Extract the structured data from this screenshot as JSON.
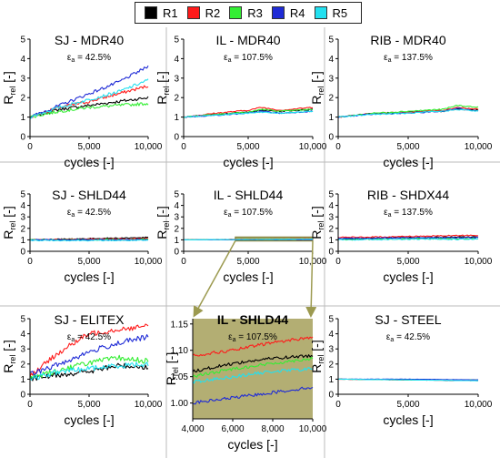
{
  "legend": [
    {
      "name": "R1",
      "color": "#000000"
    },
    {
      "name": "R2",
      "color": "#ff1a1a"
    },
    {
      "name": "R3",
      "color": "#33ee33"
    },
    {
      "name": "R4",
      "color": "#1f2bd6"
    },
    {
      "name": "R5",
      "color": "#22e0f0"
    }
  ],
  "chart_data": [
    {
      "type": "line",
      "title": "SJ - MDR40",
      "subtitle_sym": "ε",
      "subtitle_sub": "a",
      "subtitle_val": " = 42.5%",
      "xlabel": "cycles [-]",
      "ylabel_main": "R",
      "ylabel_sub": "rel",
      "ylabel_unit": " [-]",
      "xlim": [
        0,
        10000
      ],
      "ylim": [
        0,
        5
      ],
      "xticks": [
        0,
        5000,
        10000
      ],
      "xtick_labels": [
        "0",
        "5,000",
        "10,000"
      ],
      "yticks": [
        0,
        1,
        2,
        3,
        4,
        5
      ],
      "ytick_labels": [
        "0",
        "1",
        "2",
        "3",
        "4",
        "5"
      ],
      "noise": 0.08,
      "bg": "#ffffff",
      "x": [
        0,
        2500,
        5000,
        7500,
        10000
      ],
      "series": [
        {
          "name": "R1",
          "values": [
            1.0,
            1.4,
            1.6,
            1.8,
            2.0
          ]
        },
        {
          "name": "R2",
          "values": [
            1.0,
            1.5,
            1.8,
            2.2,
            2.6
          ]
        },
        {
          "name": "R3",
          "values": [
            1.0,
            1.3,
            1.5,
            1.6,
            1.7
          ]
        },
        {
          "name": "R4",
          "values": [
            1.0,
            1.6,
            2.2,
            2.8,
            3.6
          ]
        },
        {
          "name": "R5",
          "values": [
            1.0,
            1.5,
            1.9,
            2.3,
            2.9
          ]
        }
      ]
    },
    {
      "type": "line",
      "title": "IL - MDR40",
      "subtitle_sym": "ε",
      "subtitle_sub": "a",
      "subtitle_val": " = 107.5%",
      "xlabel": "cycles [-]",
      "ylabel_main": "R",
      "ylabel_sub": "rel",
      "ylabel_unit": " [-]",
      "xlim": [
        0,
        10000
      ],
      "ylim": [
        0,
        5
      ],
      "xticks": [
        0,
        5000,
        10000
      ],
      "xtick_labels": [
        "0",
        "5,000",
        "10,000"
      ],
      "yticks": [
        0,
        1,
        2,
        3,
        4,
        5
      ],
      "ytick_labels": [
        "0",
        "1",
        "2",
        "3",
        "4",
        "5"
      ],
      "noise": 0.03,
      "bg": "#ffffff",
      "x": [
        0,
        2500,
        5000,
        6000,
        7500,
        10000
      ],
      "series": [
        {
          "name": "R1",
          "values": [
            1.0,
            1.15,
            1.25,
            1.35,
            1.3,
            1.4
          ]
        },
        {
          "name": "R2",
          "values": [
            1.0,
            1.2,
            1.35,
            1.5,
            1.35,
            1.5
          ]
        },
        {
          "name": "R3",
          "values": [
            1.0,
            1.15,
            1.25,
            1.4,
            1.3,
            1.4
          ]
        },
        {
          "name": "R4",
          "values": [
            1.0,
            1.1,
            1.2,
            1.3,
            1.2,
            1.3
          ]
        },
        {
          "name": "R5",
          "values": [
            1.0,
            1.1,
            1.2,
            1.25,
            1.2,
            1.3
          ]
        }
      ]
    },
    {
      "type": "line",
      "title": "RIB - MDR40",
      "subtitle_sym": "ε",
      "subtitle_sub": "a",
      "subtitle_val": " = 137.5%",
      "xlabel": "cycles [-]",
      "ylabel_main": "R",
      "ylabel_sub": "rel",
      "ylabel_unit": " [-]",
      "xlim": [
        0,
        10000
      ],
      "ylim": [
        0,
        5
      ],
      "xticks": [
        0,
        5000,
        10000
      ],
      "xtick_labels": [
        "0",
        "5,000",
        "10,000"
      ],
      "yticks": [
        0,
        1,
        2,
        3,
        4,
        5
      ],
      "ytick_labels": [
        "0",
        "1",
        "2",
        "3",
        "4",
        "5"
      ],
      "noise": 0.03,
      "bg": "#ffffff",
      "x": [
        0,
        2500,
        5000,
        7500,
        8500,
        10000
      ],
      "series": [
        {
          "name": "R1",
          "values": [
            1.0,
            1.2,
            1.25,
            1.3,
            1.4,
            1.35
          ]
        },
        {
          "name": "R2",
          "values": [
            1.0,
            1.2,
            1.25,
            1.35,
            1.5,
            1.4
          ]
        },
        {
          "name": "R3",
          "values": [
            1.0,
            1.2,
            1.3,
            1.4,
            1.6,
            1.5
          ]
        },
        {
          "name": "R4",
          "values": [
            1.0,
            1.15,
            1.2,
            1.3,
            1.45,
            1.3
          ]
        },
        {
          "name": "R5",
          "values": [
            1.0,
            1.15,
            1.2,
            1.3,
            1.4,
            1.3
          ]
        }
      ]
    },
    {
      "type": "line",
      "title": "SJ - SHLD44",
      "subtitle_sym": "ε",
      "subtitle_sub": "a",
      "subtitle_val": " = 42.5%",
      "xlabel": "cycles [-]",
      "ylabel_main": "R",
      "ylabel_sub": "rel",
      "ylabel_unit": " [-]",
      "xlim": [
        0,
        10000
      ],
      "ylim": [
        0,
        5
      ],
      "xticks": [
        0,
        5000,
        10000
      ],
      "xtick_labels": [
        "0",
        "5,000",
        "10,000"
      ],
      "yticks": [
        0,
        1,
        2,
        3,
        4,
        5
      ],
      "ytick_labels": [
        "0",
        "1",
        "2",
        "3",
        "4",
        "5"
      ],
      "noise": 0.05,
      "bg": "#ffffff",
      "x": [
        0,
        5000,
        10000
      ],
      "series": [
        {
          "name": "R1",
          "values": [
            1.0,
            1.1,
            1.2
          ]
        },
        {
          "name": "R2",
          "values": [
            1.0,
            1.05,
            1.1
          ]
        },
        {
          "name": "R3",
          "values": [
            1.0,
            1.0,
            1.05
          ]
        },
        {
          "name": "R4",
          "values": [
            1.0,
            1.0,
            1.0
          ]
        },
        {
          "name": "R5",
          "values": [
            0.95,
            0.95,
            0.95
          ]
        }
      ]
    },
    {
      "type": "line",
      "title": "IL - SHLD44",
      "subtitle_sym": "ε",
      "subtitle_sub": "a",
      "subtitle_val": " = 107.5%",
      "xlabel": "cycles [-]",
      "ylabel_main": "R",
      "ylabel_sub": "rel",
      "ylabel_unit": " [-]",
      "xlim": [
        0,
        10000
      ],
      "ylim": [
        0,
        5
      ],
      "xticks": [
        0,
        5000,
        10000
      ],
      "xtick_labels": [
        "0",
        "5,000",
        "10,000"
      ],
      "yticks": [
        0,
        1,
        2,
        3,
        4,
        5
      ],
      "ytick_labels": [
        "0",
        "1",
        "2",
        "3",
        "4",
        "5"
      ],
      "noise": 0.01,
      "bg": "#ffffff",
      "highlight": [
        4000,
        10000,
        0.9,
        1.25
      ],
      "x": [
        0,
        5000,
        10000
      ],
      "series": [
        {
          "name": "R1",
          "values": [
            1.0,
            1.03,
            1.05
          ]
        },
        {
          "name": "R2",
          "values": [
            1.0,
            1.06,
            1.1
          ]
        },
        {
          "name": "R3",
          "values": [
            1.0,
            1.04,
            1.08
          ]
        },
        {
          "name": "R4",
          "values": [
            1.0,
            1.01,
            1.02
          ]
        },
        {
          "name": "R5",
          "values": [
            1.0,
            1.03,
            1.07
          ]
        }
      ]
    },
    {
      "type": "line",
      "title": "RIB - SHDX44",
      "subtitle_sym": "ε",
      "subtitle_sub": "a",
      "subtitle_val": " = 137.5%",
      "xlabel": "cycles [-]",
      "ylabel_main": "R",
      "ylabel_sub": "rel",
      "ylabel_unit": " [-]",
      "xlim": [
        0,
        10000
      ],
      "ylim": [
        0,
        5
      ],
      "xticks": [
        0,
        5000,
        10000
      ],
      "xtick_labels": [
        "0",
        "5,000",
        "10,000"
      ],
      "yticks": [
        0,
        1,
        2,
        3,
        4,
        5
      ],
      "ytick_labels": [
        "0",
        "1",
        "2",
        "3",
        "4",
        "5"
      ],
      "noise": 0.05,
      "bg": "#ffffff",
      "x": [
        0,
        5000,
        10000
      ],
      "series": [
        {
          "name": "R1",
          "values": [
            1.1,
            1.2,
            1.25
          ]
        },
        {
          "name": "R2",
          "values": [
            1.2,
            1.3,
            1.4
          ]
        },
        {
          "name": "R3",
          "values": [
            1.0,
            1.1,
            1.1
          ]
        },
        {
          "name": "R4",
          "values": [
            1.1,
            1.2,
            1.2
          ]
        },
        {
          "name": "R5",
          "values": [
            1.0,
            1.05,
            1.05
          ]
        }
      ]
    },
    {
      "type": "line",
      "title": "SJ - ELITEX",
      "subtitle_sym": "ε",
      "subtitle_sub": "a",
      "subtitle_val": " = 42.5%",
      "xlabel": "cycles [-]",
      "ylabel_main": "R",
      "ylabel_sub": "rel",
      "ylabel_unit": " [-]",
      "xlim": [
        0,
        10000
      ],
      "ylim": [
        0,
        5
      ],
      "xticks": [
        0,
        5000,
        10000
      ],
      "xtick_labels": [
        "0",
        "5,000",
        "10,000"
      ],
      "yticks": [
        0,
        1,
        2,
        3,
        4,
        5
      ],
      "ytick_labels": [
        "0",
        "1",
        "2",
        "3",
        "4",
        "5"
      ],
      "noise": 0.18,
      "bg": "#ffffff",
      "x": [
        0,
        2500,
        5000,
        7500,
        10000
      ],
      "series": [
        {
          "name": "R1",
          "values": [
            1.0,
            1.3,
            1.5,
            1.9,
            1.8
          ]
        },
        {
          "name": "R2",
          "values": [
            1.2,
            2.8,
            4.0,
            4.3,
            4.5
          ]
        },
        {
          "name": "R3",
          "values": [
            1.1,
            1.6,
            2.1,
            2.4,
            2.2
          ]
        },
        {
          "name": "R4",
          "values": [
            1.3,
            2.0,
            2.8,
            3.4,
            3.8
          ]
        },
        {
          "name": "R5",
          "values": [
            1.0,
            1.5,
            1.7,
            1.9,
            2.0
          ]
        }
      ]
    },
    {
      "type": "line",
      "title": "IL - SHLD44",
      "subtitle_sym": "ε",
      "subtitle_sub": "a",
      "subtitle_val": " = 107.5%",
      "xlabel": "cycles [-]",
      "ylabel_main": "R",
      "ylabel_sub": "rel",
      "ylabel_unit": " [-]",
      "xlim": [
        4000,
        10000
      ],
      "ylim": [
        0.97,
        1.16
      ],
      "xticks": [
        4000,
        6000,
        8000,
        10000
      ],
      "xtick_labels": [
        "4,000",
        "6,000",
        "8,000",
        "10,000"
      ],
      "yticks": [
        1.0,
        1.05,
        1.1,
        1.15
      ],
      "ytick_labels": [
        "1.00",
        "1.05",
        "1.10",
        "1.15"
      ],
      "noise": 0.003,
      "bg": "#b3ae73",
      "x": [
        4000,
        6000,
        8000,
        10000
      ],
      "series": [
        {
          "name": "R1",
          "values": [
            1.06,
            1.075,
            1.085,
            1.09
          ]
        },
        {
          "name": "R2",
          "values": [
            1.09,
            1.1,
            1.115,
            1.125
          ]
        },
        {
          "name": "R3",
          "values": [
            1.05,
            1.065,
            1.075,
            1.085
          ]
        },
        {
          "name": "R4",
          "values": [
            1.0,
            1.01,
            1.02,
            1.03
          ]
        },
        {
          "name": "R5",
          "values": [
            1.04,
            1.05,
            1.06,
            1.065
          ]
        }
      ]
    },
    {
      "type": "line",
      "title": "SJ - STEEL",
      "subtitle_sym": "ε",
      "subtitle_sub": "a",
      "subtitle_val": " = 42.5%",
      "xlabel": "cycles [-]",
      "ylabel_main": "R",
      "ylabel_sub": "rel",
      "ylabel_unit": " [-]",
      "xlim": [
        0,
        10000
      ],
      "ylim": [
        0,
        5
      ],
      "xticks": [
        0,
        5000,
        10000
      ],
      "xtick_labels": [
        "0",
        "5,000",
        "10,000"
      ],
      "yticks": [
        0,
        1,
        2,
        3,
        4,
        5
      ],
      "ytick_labels": [
        "0",
        "1",
        "2",
        "3",
        "4",
        "5"
      ],
      "noise": 0.01,
      "bg": "#ffffff",
      "x": [
        0,
        5000,
        10000
      ],
      "series": [
        {
          "name": "R1",
          "values": [
            1.0,
            0.95,
            0.9
          ]
        },
        {
          "name": "R2",
          "values": [
            1.0,
            0.95,
            0.95
          ]
        },
        {
          "name": "R3",
          "values": [
            1.0,
            0.95,
            0.95
          ]
        },
        {
          "name": "R4",
          "values": [
            1.0,
            1.0,
            0.95
          ]
        },
        {
          "name": "R5",
          "values": [
            1.0,
            0.95,
            0.9
          ]
        }
      ]
    }
  ]
}
